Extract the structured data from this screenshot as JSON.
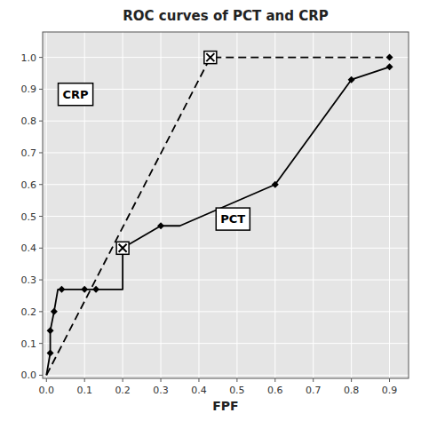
{
  "chart_data": {
    "type": "line",
    "title": "ROC curves of PCT and CRP",
    "x_label": "FPF",
    "xlim": [
      -0.01,
      0.95
    ],
    "ylim": [
      -0.01,
      1.08
    ],
    "xticks": [
      {
        "value": 0,
        "label": "0.0"
      },
      0.1,
      0.2,
      0.3,
      0.4,
      0.5,
      0.6,
      0.7,
      0.8,
      0.9
    ],
    "yticks": [
      {
        "value": 0,
        "label": "0.0"
      },
      0.1,
      0.2,
      0.3,
      0.4,
      0.5,
      0.6,
      0.7,
      0.8,
      0.9,
      {
        "value": 1.0,
        "label": "1.0"
      }
    ],
    "grid": true,
    "series": [
      {
        "name": "PCT",
        "type": "line",
        "line_style": "solid",
        "marker": "none",
        "color": "black",
        "x": [
          0.0,
          0.01,
          0.01,
          0.02,
          0.03,
          0.04,
          0.05,
          0.06,
          0.07,
          0.08,
          0.09,
          0.1,
          0.11,
          0.12,
          0.13,
          0.2,
          0.2,
          0.3,
          0.35,
          0.6,
          0.8,
          0.9
        ],
        "values": [
          0.0,
          0.07,
          0.14,
          0.2,
          0.27,
          0.27,
          0.27,
          0.27,
          0.27,
          0.27,
          0.27,
          0.27,
          0.27,
          0.27,
          0.27,
          0.27,
          0.4,
          0.47,
          0.47,
          0.6,
          0.93,
          0.97
        ]
      },
      {
        "type": "scatter",
        "marker": "diamond",
        "color": "black",
        "x": [
          0.01,
          0.01,
          0.02,
          0.04,
          0.1,
          0.13,
          0.2,
          0.3,
          0.6,
          0.8,
          0.9
        ],
        "values": [
          0.07,
          0.14,
          0.2,
          0.27,
          0.27,
          0.27,
          0.4,
          0.47,
          0.6,
          0.93,
          0.97
        ]
      },
      {
        "type": "scatter",
        "marker": "square-x",
        "color": "black",
        "x": [
          0.2
        ],
        "values": [
          0.4
        ]
      },
      {
        "name": "CRP",
        "type": "line",
        "line_style": "dashed",
        "marker": "none",
        "color": "black",
        "x": [
          0.0,
          0.43,
          0.9
        ],
        "values": [
          0.0,
          1.0,
          1.0
        ]
      },
      {
        "type": "scatter",
        "marker": "diamond",
        "color": "black",
        "x": [
          0.9
        ],
        "values": [
          1.0
        ]
      },
      {
        "type": "scatter",
        "marker": "square-x",
        "color": "black",
        "x": [
          0.43
        ],
        "values": [
          1.0
        ]
      }
    ]
  }
}
